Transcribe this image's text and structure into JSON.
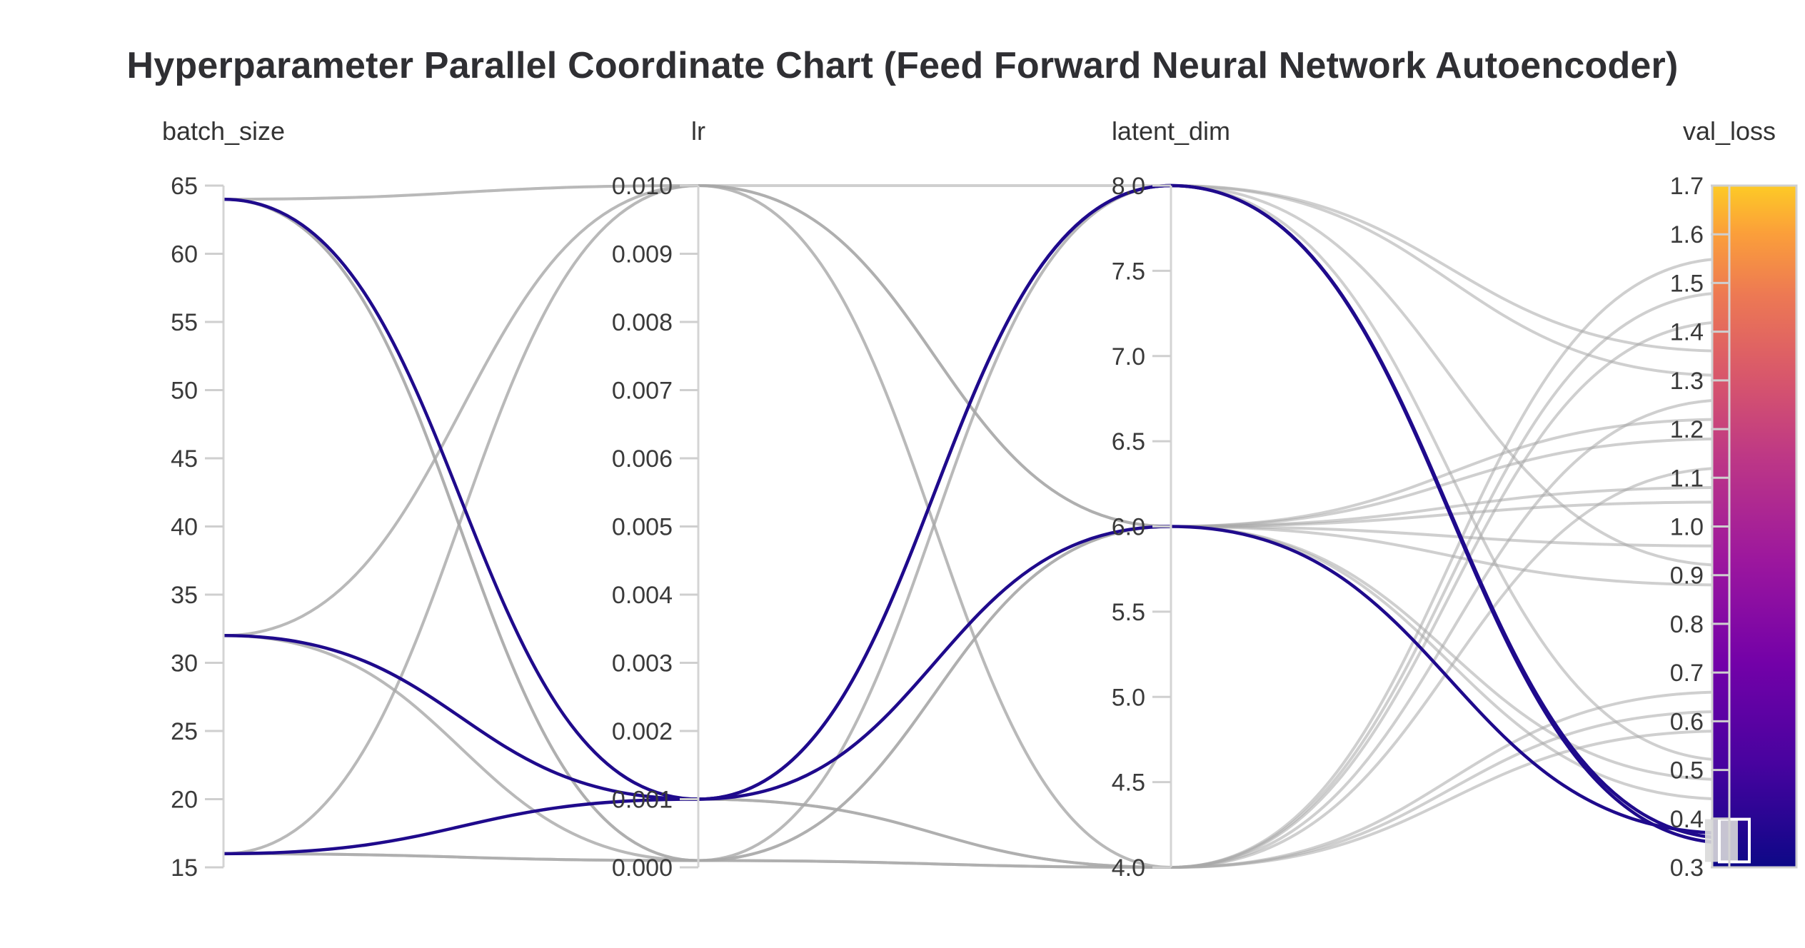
{
  "chart_data": {
    "type": "parallel_coordinates",
    "title": "Hyperparameter Parallel Coordinate Chart (Feed Forward Neural Network Autoencoder)",
    "colorscale": {
      "name": "plasma",
      "range": [
        0.3,
        1.7
      ],
      "highlight_color": "#1f0a8c",
      "base_color": "#a8a8a8"
    },
    "axes": [
      {
        "name": "batch_size",
        "label": "batch_size",
        "range": [
          15,
          65
        ],
        "ticks": [
          "15",
          "20",
          "25",
          "30",
          "35",
          "40",
          "45",
          "50",
          "55",
          "60",
          "65"
        ]
      },
      {
        "name": "lr",
        "label": "lr",
        "range": [
          0,
          0.01
        ],
        "ticks": [
          "0.000",
          "0.001",
          "0.002",
          "0.003",
          "0.004",
          "0.005",
          "0.006",
          "0.007",
          "0.008",
          "0.009",
          "0.010"
        ]
      },
      {
        "name": "latent_dim",
        "label": "latent_dim",
        "range": [
          4,
          8
        ],
        "ticks": [
          "4.0",
          "4.5",
          "5.0",
          "5.5",
          "6.0",
          "6.5",
          "7.0",
          "7.5",
          "8.0"
        ]
      },
      {
        "name": "val_loss",
        "label": "val_loss",
        "range": [
          0.3,
          1.7
        ],
        "ticks": [
          "0.3",
          "0.4",
          "0.5",
          "0.6",
          "0.7",
          "0.8",
          "0.9",
          "1.0",
          "1.1",
          "1.2",
          "1.3",
          "1.4",
          "1.5",
          "1.6",
          "1.7"
        ]
      }
    ],
    "constraint_range": {
      "axis": "val_loss",
      "range": [
        0.32,
        0.39
      ]
    },
    "highlighted_runs": [
      {
        "batch_size": 64,
        "lr": 0.001,
        "latent_dim": 8,
        "val_loss": 0.35
      },
      {
        "batch_size": 32,
        "lr": 0.001,
        "latent_dim": 8,
        "val_loss": 0.36
      },
      {
        "batch_size": 16,
        "lr": 0.001,
        "latent_dim": 6,
        "val_loss": 0.37
      }
    ],
    "runs": [
      {
        "batch_size": 64,
        "lr": 0.01,
        "latent_dim": 8,
        "val_loss": 0.92
      },
      {
        "batch_size": 64,
        "lr": 0.01,
        "latent_dim": 6,
        "val_loss": 1.05
      },
      {
        "batch_size": 64,
        "lr": 0.0001,
        "latent_dim": 4,
        "val_loss": 1.48
      },
      {
        "batch_size": 64,
        "lr": 0.0001,
        "latent_dim": 6,
        "val_loss": 1.22
      },
      {
        "batch_size": 64,
        "lr": 0.0001,
        "latent_dim": 8,
        "val_loss": 1.31
      },
      {
        "batch_size": 64,
        "lr": 0.001,
        "latent_dim": 4,
        "val_loss": 0.62
      },
      {
        "batch_size": 64,
        "lr": 0.001,
        "latent_dim": 6,
        "val_loss": 0.48
      },
      {
        "batch_size": 32,
        "lr": 0.01,
        "latent_dim": 6,
        "val_loss": 0.88
      },
      {
        "batch_size": 32,
        "lr": 0.01,
        "latent_dim": 4,
        "val_loss": 1.12
      },
      {
        "batch_size": 32,
        "lr": 0.0001,
        "latent_dim": 4,
        "val_loss": 1.55
      },
      {
        "batch_size": 32,
        "lr": 0.0001,
        "latent_dim": 6,
        "val_loss": 1.18
      },
      {
        "batch_size": 32,
        "lr": 0.001,
        "latent_dim": 4,
        "val_loss": 0.58
      },
      {
        "batch_size": 32,
        "lr": 0.001,
        "latent_dim": 6,
        "val_loss": 0.44
      },
      {
        "batch_size": 16,
        "lr": 0.01,
        "latent_dim": 6,
        "val_loss": 0.96
      },
      {
        "batch_size": 16,
        "lr": 0.01,
        "latent_dim": 4,
        "val_loss": 1.26
      },
      {
        "batch_size": 16,
        "lr": 0.0001,
        "latent_dim": 4,
        "val_loss": 1.42
      },
      {
        "batch_size": 16,
        "lr": 0.0001,
        "latent_dim": 6,
        "val_loss": 1.08
      },
      {
        "batch_size": 16,
        "lr": 0.0001,
        "latent_dim": 8,
        "val_loss": 1.36
      },
      {
        "batch_size": 16,
        "lr": 0.001,
        "latent_dim": 4,
        "val_loss": 0.66
      },
      {
        "batch_size": 16,
        "lr": 0.001,
        "latent_dim": 8,
        "val_loss": 0.52
      }
    ]
  }
}
